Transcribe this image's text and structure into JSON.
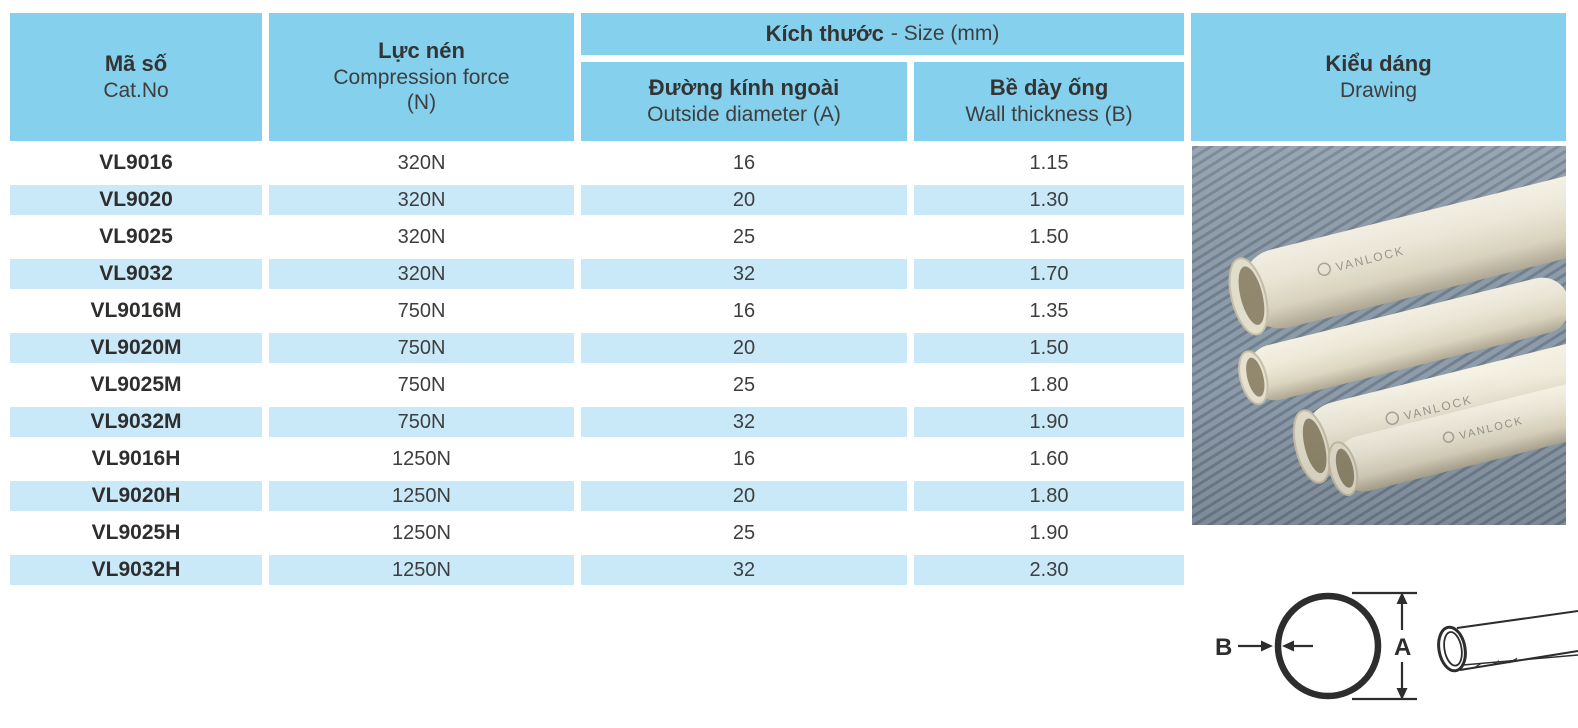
{
  "table": {
    "headers": {
      "cat_no_vi": "Mã số",
      "cat_no_en": "Cat.No",
      "force_vi": "Lực nén",
      "force_en": "Compression force",
      "force_unit": "(N)",
      "size_group_vi": "Kích thước",
      "size_group_en": "- Size (mm)",
      "outside_diameter_vi": "Đường kính ngoài",
      "outside_diameter_en": "Outside diameter (A)",
      "wall_thickness_vi": "Bề dày ống",
      "wall_thickness_en": "Wall thickness (B)",
      "drawing_vi": "Kiểu dáng",
      "drawing_en": "Drawing"
    },
    "rows": [
      {
        "cat_no": "VL9016",
        "force": "320N",
        "outside_diameter": "16",
        "wall_thickness": "1.15"
      },
      {
        "cat_no": "VL9020",
        "force": "320N",
        "outside_diameter": "20",
        "wall_thickness": "1.30"
      },
      {
        "cat_no": "VL9025",
        "force": "320N",
        "outside_diameter": "25",
        "wall_thickness": "1.50"
      },
      {
        "cat_no": "VL9032",
        "force": "320N",
        "outside_diameter": "32",
        "wall_thickness": "1.70"
      },
      {
        "cat_no": "VL9016M",
        "force": "750N",
        "outside_diameter": "16",
        "wall_thickness": "1.35"
      },
      {
        "cat_no": "VL9020M",
        "force": "750N",
        "outside_diameter": "20",
        "wall_thickness": "1.50"
      },
      {
        "cat_no": "VL9025M",
        "force": "750N",
        "outside_diameter": "25",
        "wall_thickness": "1.80"
      },
      {
        "cat_no": "VL9032M",
        "force": "750N",
        "outside_diameter": "32",
        "wall_thickness": "1.90"
      },
      {
        "cat_no": "VL9016H",
        "force": "1250N",
        "outside_diameter": "16",
        "wall_thickness": "1.60"
      },
      {
        "cat_no": "VL9020H",
        "force": "1250N",
        "outside_diameter": "20",
        "wall_thickness": "1.80"
      },
      {
        "cat_no": "VL9025H",
        "force": "1250N",
        "outside_diameter": "25",
        "wall_thickness": "1.90"
      },
      {
        "cat_no": "VL9032H",
        "force": "1250N",
        "outside_diameter": "32",
        "wall_thickness": "2.30"
      }
    ]
  },
  "photo": {
    "brand": "VANLOCK"
  },
  "diagram": {
    "label_a": "A",
    "label_b": "B"
  },
  "colors": {
    "header_blue": "#84d0ed",
    "row_blue": "#c9e9f9",
    "text_dark": "#3c3c3c",
    "photo_background": "#8e9dac",
    "pipe_cream": "#e8e2d0"
  }
}
